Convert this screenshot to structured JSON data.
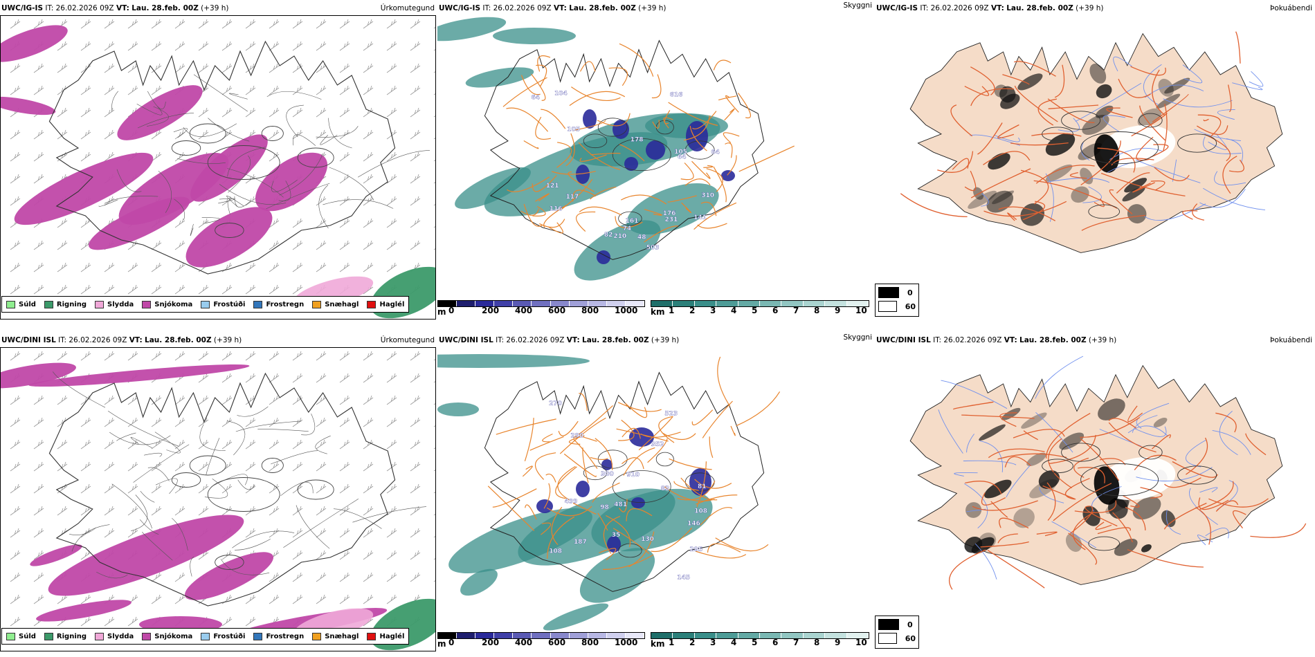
{
  "colors": {
    "drizzle": "#90ee90",
    "rain": "#3c9a6a",
    "sleet": "#f0a8d8",
    "snow": "#c048a8",
    "freezing_drizzle": "#99ccee",
    "freezing_rain": "#3377bb",
    "snow_pellets": "#f0a020",
    "hail": "#e01010",
    "cloud_base": "#3a8f8a",
    "cloud_top": "#2a2a9a",
    "land_fog": "#f5dcc8",
    "roads": "#e06030",
    "rivers": "#7090ee"
  },
  "rows": [
    {
      "model": "UWC/IG-IS",
      "it_label": "IT:",
      "it": "26.02.2026 09Z",
      "vt_label": "VT:",
      "vt": "Lau. 28.feb. 00Z",
      "lead": "(+39 h)",
      "fields": {
        "precip": "Úrkomutegund",
        "cloud": "Skyggni",
        "fog": "Þokuábendi"
      },
      "cloud_labels": [
        "82",
        "161",
        "178",
        "64",
        "64",
        "116",
        "74",
        "121",
        "105",
        "105",
        "117",
        "141",
        "210",
        "503",
        "616",
        "48",
        "176",
        "231",
        "310",
        "64",
        "104"
      ]
    },
    {
      "model": "UWC/DINI ISL",
      "it_label": "IT:",
      "it": "26.02.2026 09Z",
      "vt_label": "VT:",
      "vt": "Lau. 28.feb. 00Z",
      "lead": "(+39 h)",
      "fields": {
        "precip": "Úrkomutegund",
        "cloud": "Skyggni",
        "fog": "Þokuábendi"
      },
      "cloud_labels": [
        "910",
        "81",
        "98",
        "130",
        "300",
        "295",
        "290",
        "499",
        "270",
        "523",
        "352",
        "481",
        "35",
        "108",
        "187",
        "83",
        "108",
        "145",
        "146"
      ]
    }
  ],
  "precip_legend": [
    {
      "label": "Súld",
      "color": "#90ee90"
    },
    {
      "label": "Rigning",
      "color": "#3c9a6a"
    },
    {
      "label": "Slydda",
      "color": "#f0a8d8"
    },
    {
      "label": "Snjókoma",
      "color": "#c048a8"
    },
    {
      "label": "Frostúði",
      "color": "#99ccee"
    },
    {
      "label": "Frostregn",
      "color": "#3377bb"
    },
    {
      "label": "Snæhagl",
      "color": "#f0a020"
    },
    {
      "label": "Haglél",
      "color": "#e01010"
    }
  ],
  "colorbar_m": {
    "unit": "m",
    "ticks": [
      "0",
      "200",
      "400",
      "600",
      "800",
      "1000"
    ],
    "min": 0,
    "max": 1100
  },
  "colorbar_km": {
    "unit": "km",
    "ticks": [
      "1",
      "2",
      "3",
      "4",
      "5",
      "6",
      "7",
      "8",
      "9",
      "10"
    ],
    "min": 1,
    "max": 10
  },
  "fog_legend": [
    {
      "label": "0",
      "color": "#000000"
    },
    {
      "label": "60",
      "color": "#ffffff"
    }
  ]
}
